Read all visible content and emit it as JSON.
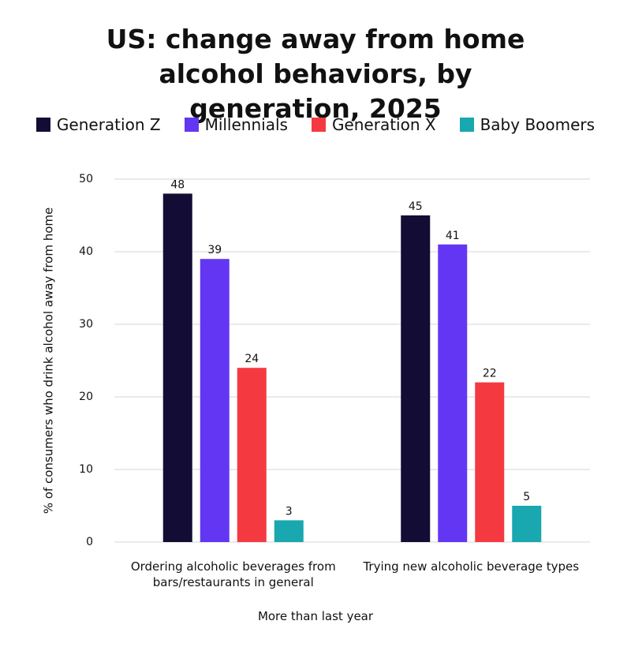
{
  "chart_data": {
    "type": "bar",
    "title": "US: change away from home alcohol behaviors, by generation, 2025",
    "categories": [
      "Ordering alcoholic beverages from bars/restaurants in general",
      "Trying new alcoholic beverage types"
    ],
    "series": [
      {
        "name": "Generation Z",
        "color": "#130c35",
        "values": [
          48,
          45
        ]
      },
      {
        "name": "Millennials",
        "color": "#6336f4",
        "values": [
          39,
          41
        ]
      },
      {
        "name": "Generation X",
        "color": "#f43a40",
        "values": [
          24,
          22
        ]
      },
      {
        "name": "Baby Boomers",
        "color": "#19a7b0",
        "values": [
          3,
          5
        ]
      }
    ],
    "x_label": "More than last year",
    "y_label": "% of consumers who drink alcohol away from home",
    "ylim": [
      0,
      50
    ],
    "yticks": [
      0,
      10,
      20,
      30,
      40,
      50
    ],
    "grid": true,
    "legend": "top"
  }
}
